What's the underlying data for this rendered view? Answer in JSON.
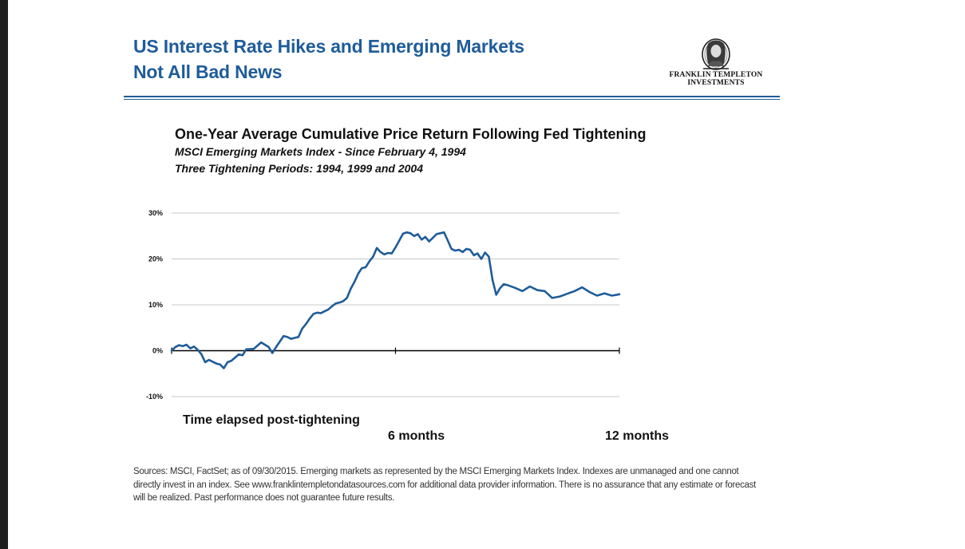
{
  "header": {
    "title_line1": "US Interest Rate Hikes and Emerging Markets",
    "title_line2": "Not All Bad News"
  },
  "logo": {
    "line1": "FRANKLIN TEMPLETON",
    "line2": "INVESTMENTS"
  },
  "colors": {
    "title": "#1f5c99",
    "series": "#1f5c99",
    "grid": "#c8c8c8",
    "axis": "#000000"
  },
  "footer": {
    "sources": "Sources: MSCI, FactSet; as of 09/30/2015. Emerging markets as represented by the MSCI Emerging Markets Index. Indexes are unmanaged and one cannot directly invest in an index. See www.franklintempletondatasources.com for additional data provider information. There is no assurance that any estimate or forecast will be realized. Past performance does not guarantee future results."
  },
  "chart_data": {
    "type": "line",
    "title": "One-Year Average Cumulative Price Return Following Fed Tightening",
    "subtitle_line1": "MSCI Emerging Markets Index - Since February 4, 1994",
    "subtitle_line2": "Three  Tightening Periods: 1994, 1999 and 2004",
    "xlabel": "Time elapsed post-tightening",
    "ylabel": "",
    "ylim": [
      -10,
      30
    ],
    "xlim": [
      0,
      12
    ],
    "yticks": [
      30,
      20,
      10,
      0,
      -10
    ],
    "ytick_labels": [
      "30%",
      "20%",
      "10%",
      "0%",
      "-10%"
    ],
    "xticks": [
      {
        "value": 6,
        "label": "6 months"
      },
      {
        "value": 12,
        "label": "12 months"
      }
    ],
    "grid": true,
    "legend": "none",
    "series": [
      {
        "x": [
          0,
          0.1,
          0.2,
          0.3,
          0.4,
          0.5,
          0.6,
          0.7,
          0.8,
          0.9,
          1.0,
          1.1,
          1.2,
          1.3,
          1.4,
          1.5,
          1.6,
          1.7,
          1.8,
          1.9,
          2.0,
          2.2,
          2.4,
          2.6,
          2.7,
          2.8,
          2.9,
          3.0,
          3.1,
          3.2,
          3.3,
          3.4,
          3.5,
          3.6,
          3.7,
          3.8,
          3.9,
          4.0,
          4.1,
          4.2,
          4.3,
          4.4,
          4.5,
          4.6,
          4.7,
          4.8,
          4.9,
          5.0,
          5.1,
          5.2,
          5.3,
          5.4,
          5.5,
          5.6,
          5.7,
          5.8,
          5.9,
          6.0,
          6.1,
          6.2,
          6.3,
          6.4,
          6.5,
          6.6,
          6.7,
          6.8,
          6.9,
          7.0,
          7.1,
          7.2,
          7.3,
          7.4,
          7.5,
          7.6,
          7.7,
          7.8,
          7.9,
          8.0,
          8.1,
          8.2,
          8.3,
          8.4,
          8.5,
          8.6,
          8.7,
          8.8,
          8.9,
          9.0,
          9.2,
          9.4,
          9.6,
          9.8,
          10.0,
          10.2,
          10.4,
          10.6,
          10.8,
          11.0,
          11.2,
          11.4,
          11.6,
          11.8,
          12.0
        ],
        "y": [
          0,
          0.8,
          1.2,
          1.0,
          1.3,
          0.5,
          0.9,
          0.2,
          -0.8,
          -2.5,
          -2.0,
          -2.4,
          -2.8,
          -3.0,
          -3.8,
          -2.5,
          -2.2,
          -1.5,
          -0.8,
          -1.0,
          0.3,
          0.4,
          1.8,
          0.8,
          -0.5,
          0.8,
          2.0,
          3.2,
          3.0,
          2.6,
          2.8,
          3.0,
          4.8,
          5.8,
          7.0,
          8.0,
          8.3,
          8.2,
          8.6,
          9.0,
          9.7,
          10.3,
          10.5,
          10.8,
          11.5,
          13.5,
          15.0,
          16.8,
          18.0,
          18.2,
          19.5,
          20.5,
          22.4,
          21.5,
          21.0,
          21.3,
          21.2,
          22.5,
          24.0,
          25.5,
          25.8,
          25.6,
          25.0,
          25.4,
          24.2,
          24.8,
          23.8,
          24.6,
          25.4,
          25.6,
          25.8,
          24.0,
          22.2,
          21.8,
          22.0,
          21.5,
          22.2,
          22.0,
          20.8,
          21.2,
          20.0,
          21.4,
          20.5,
          15.5,
          12.2,
          13.6,
          14.5,
          14.3,
          13.7,
          13.0,
          14.0,
          13.2,
          13.0,
          11.5,
          11.8,
          12.4,
          13.0,
          13.8,
          12.8,
          12.0,
          12.5,
          12.0,
          12.3
        ]
      }
    ]
  }
}
